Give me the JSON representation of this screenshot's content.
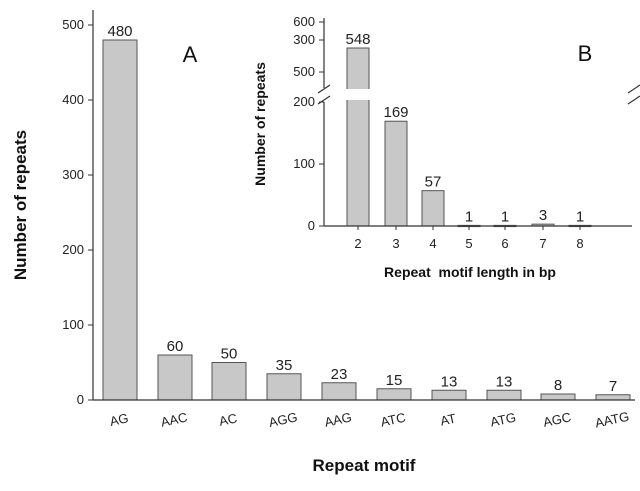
{
  "chart_data": [
    {
      "panel_label": "A",
      "type": "bar",
      "categories": [
        "AG",
        "AAC",
        "AC",
        "AGG",
        "AAG",
        "ATC",
        "AT",
        "ATG",
        "AGC",
        "AATG"
      ],
      "values": [
        480,
        60,
        50,
        35,
        23,
        15,
        13,
        13,
        8,
        7
      ],
      "data_labels": [
        "480",
        "60",
        "50",
        "35",
        "23",
        "15",
        "13",
        "13",
        "8",
        "7"
      ],
      "xlabel": "Repeat motif",
      "ylabel": "Number of repeats",
      "ylim": [
        0,
        520
      ],
      "yticks": [
        0,
        100,
        200,
        300,
        400,
        500
      ],
      "grid": false,
      "bar_color": "#c8c8c8"
    },
    {
      "panel_label": "B",
      "type": "bar",
      "categories": [
        "2",
        "3",
        "4",
        "5",
        "6",
        "7",
        "8"
      ],
      "values": [
        548,
        169,
        57,
        1,
        1,
        3,
        1
      ],
      "data_labels": [
        "548",
        "169",
        "57",
        "1",
        "1",
        "3",
        "1"
      ],
      "xlabel": "Repeat  motif length in bp",
      "ylabel": "Number of repeats",
      "ylim": [
        0,
        600
      ],
      "axis_break": [
        330,
        470
      ],
      "yticks": [
        0,
        100,
        200,
        300,
        500,
        600
      ],
      "grid": false,
      "bar_color": "#c8c8c8"
    }
  ]
}
